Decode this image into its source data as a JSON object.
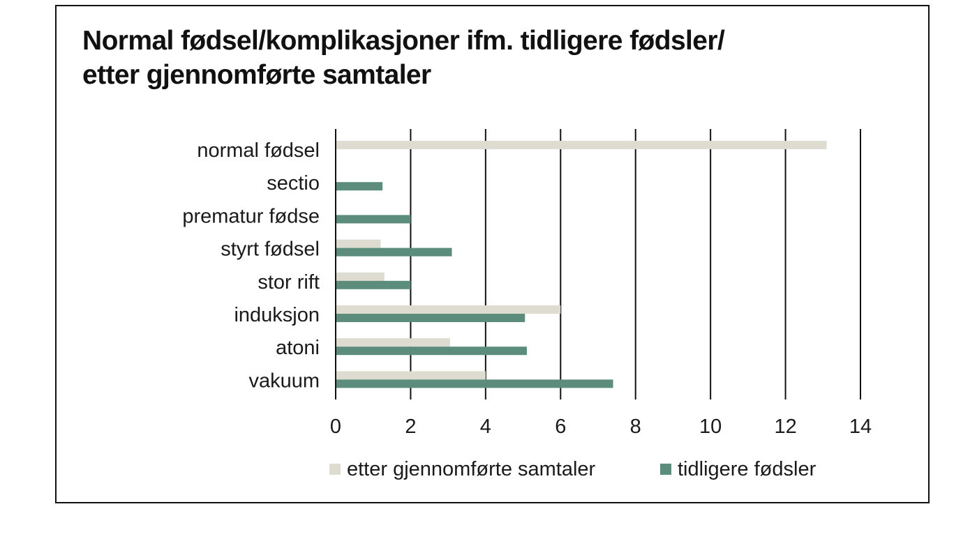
{
  "chart_data": {
    "type": "bar",
    "orientation": "horizontal",
    "title_lines": [
      "Normal fødsel/komplikasjoner ifm. tidligere fødsler/",
      "etter gjennomførte samtaler"
    ],
    "categories": [
      "normal fødsel",
      "sectio",
      "prematur fødse",
      "styrt fødsel",
      "stor rift",
      "induksjon",
      "atoni",
      "vakuum"
    ],
    "series": [
      {
        "name": "etter gjennomførte samtaler",
        "color": "#dedbd0",
        "values": [
          13.1,
          0,
          0,
          1.2,
          1.3,
          6.0,
          3.05,
          4.0
        ]
      },
      {
        "name": "tidligere fødsler",
        "color": "#5b8c7c",
        "values": [
          0,
          1.25,
          2.0,
          3.1,
          2.0,
          5.05,
          5.1,
          7.4
        ]
      }
    ],
    "xlim": [
      0,
      14
    ],
    "xticks": [
      "0",
      "2",
      "4",
      "6",
      "8",
      "10",
      "12",
      "14"
    ],
    "grid": true,
    "legend_position": "bottom"
  }
}
